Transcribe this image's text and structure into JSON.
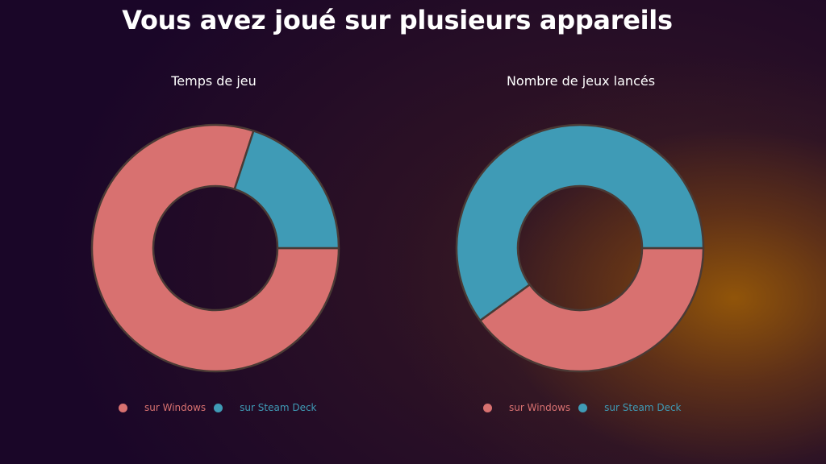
{
  "title": "Vous avez joué sur plusieurs appareils",
  "colors": {
    "windows": "#d87170",
    "steam_deck": "#3f9bb6",
    "stroke": "#4a3a35"
  },
  "chart_data": [
    {
      "type": "pie",
      "title": "Temps de jeu",
      "categories": [
        "sur Windows",
        "sur Steam Deck"
      ],
      "values": [
        80,
        20
      ],
      "legend": "bottom"
    },
    {
      "type": "pie",
      "title": "Nombre de jeux lancés",
      "categories": [
        "sur Windows",
        "sur Steam Deck"
      ],
      "values": [
        40,
        60
      ],
      "legend": "bottom"
    }
  ]
}
